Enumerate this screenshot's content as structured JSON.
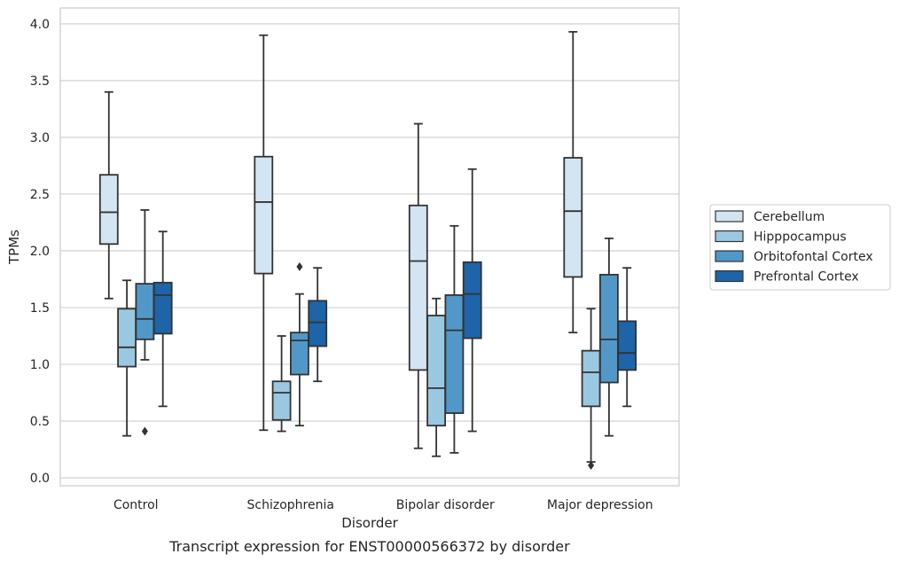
{
  "chart_data": {
    "type": "box",
    "title": "",
    "caption": "Transcript expression for ENST00000566372 by disorder",
    "xlabel": "Disorder",
    "ylabel": "TPMs",
    "ylim": [
      -0.07,
      4.14
    ],
    "yticks": [
      "0.0",
      "0.5",
      "1.0",
      "1.5",
      "2.0",
      "2.5",
      "3.0",
      "3.5",
      "4.0"
    ],
    "ytick_values": [
      0,
      0.5,
      1.0,
      1.5,
      2.0,
      2.5,
      3.0,
      3.5,
      4.0
    ],
    "grid": "horizontal",
    "legend_position": "right",
    "categories": [
      "Control",
      "Schizophrenia",
      "Bipolar disorder",
      "Major depression"
    ],
    "series": [
      {
        "name": "Cerebellum",
        "color": "#d3e4f3",
        "boxes": [
          {
            "whisker_low": 1.58,
            "q1": 2.06,
            "median": 2.34,
            "q3": 2.67,
            "whisker_high": 3.4,
            "outliers": []
          },
          {
            "whisker_low": 0.42,
            "q1": 1.8,
            "median": 2.43,
            "q3": 2.83,
            "whisker_high": 3.9,
            "outliers": []
          },
          {
            "whisker_low": 0.26,
            "q1": 0.95,
            "median": 1.91,
            "q3": 2.4,
            "whisker_high": 3.12,
            "outliers": []
          },
          {
            "whisker_low": 1.28,
            "q1": 1.77,
            "median": 2.35,
            "q3": 2.82,
            "whisker_high": 3.93,
            "outliers": []
          }
        ]
      },
      {
        "name": "Hipppocampus",
        "color": "#9ac8e0",
        "boxes": [
          {
            "whisker_low": 0.37,
            "q1": 0.98,
            "median": 1.15,
            "q3": 1.49,
            "whisker_high": 1.74,
            "outliers": []
          },
          {
            "whisker_low": 0.41,
            "q1": 0.51,
            "median": 0.75,
            "q3": 0.85,
            "whisker_high": 1.25,
            "outliers": []
          },
          {
            "whisker_low": 0.19,
            "q1": 0.46,
            "median": 0.79,
            "q3": 1.43,
            "whisker_high": 1.58,
            "outliers": []
          },
          {
            "whisker_low": 0.14,
            "q1": 0.63,
            "median": 0.93,
            "q3": 1.12,
            "whisker_high": 1.49,
            "outliers": [
              0.11
            ]
          }
        ]
      },
      {
        "name": "Orbitofontal Cortex",
        "color": "#5198c8",
        "boxes": [
          {
            "whisker_low": 1.04,
            "q1": 1.22,
            "median": 1.4,
            "q3": 1.71,
            "whisker_high": 2.36,
            "outliers": [
              0.41
            ]
          },
          {
            "whisker_low": 0.46,
            "q1": 0.91,
            "median": 1.21,
            "q3": 1.28,
            "whisker_high": 1.62,
            "outliers": [
              1.86
            ]
          },
          {
            "whisker_low": 0.22,
            "q1": 0.57,
            "median": 1.3,
            "q3": 1.61,
            "whisker_high": 2.22,
            "outliers": []
          },
          {
            "whisker_low": 0.37,
            "q1": 0.84,
            "median": 1.22,
            "q3": 1.79,
            "whisker_high": 2.11,
            "outliers": []
          }
        ]
      },
      {
        "name": "Prefrontal Cortex",
        "color": "#1d64a8",
        "boxes": [
          {
            "whisker_low": 0.63,
            "q1": 1.27,
            "median": 1.61,
            "q3": 1.72,
            "whisker_high": 2.17,
            "outliers": []
          },
          {
            "whisker_low": 0.85,
            "q1": 1.16,
            "median": 1.37,
            "q3": 1.56,
            "whisker_high": 1.85,
            "outliers": []
          },
          {
            "whisker_low": 0.41,
            "q1": 1.23,
            "median": 1.62,
            "q3": 1.9,
            "whisker_high": 2.72,
            "outliers": []
          },
          {
            "whisker_low": 0.63,
            "q1": 0.95,
            "median": 1.1,
            "q3": 1.38,
            "whisker_high": 1.85,
            "outliers": []
          }
        ]
      }
    ]
  }
}
